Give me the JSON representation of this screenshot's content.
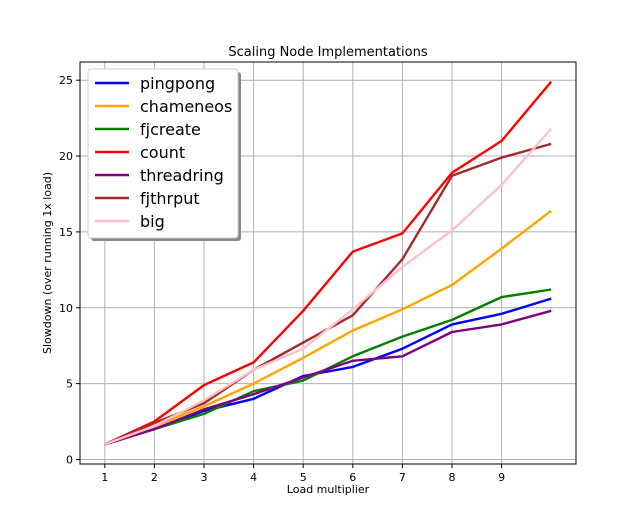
{
  "chart_data": {
    "type": "line",
    "title": "Scaling Node Implementations",
    "xlabel": "Load multiplier",
    "ylabel": "Slowdown (over running 1x load)",
    "x": [
      1,
      2,
      3,
      4,
      5,
      6,
      7,
      8,
      9,
      10
    ],
    "xticks": [
      1,
      2,
      3,
      4,
      5,
      6,
      7,
      8,
      9
    ],
    "yticks": [
      0,
      5,
      10,
      15,
      20,
      25
    ],
    "xlim": [
      0.5,
      10.5
    ],
    "ylim": [
      -0.3,
      26.2
    ],
    "grid": true,
    "legend_position": "upper-left",
    "series": [
      {
        "name": "pingpong",
        "color": "#0000ff",
        "values": [
          1,
          2.0,
          3.2,
          4.0,
          5.5,
          6.1,
          7.3,
          8.9,
          9.6,
          10.6
        ]
      },
      {
        "name": "chameneos",
        "color": "#ffa500",
        "values": [
          1,
          2.2,
          3.5,
          5.0,
          6.7,
          8.5,
          9.9,
          11.5,
          13.9,
          16.4
        ]
      },
      {
        "name": "fjcreate",
        "color": "#008000",
        "values": [
          1,
          2.0,
          3.0,
          4.5,
          5.2,
          6.8,
          8.1,
          9.2,
          10.7,
          11.2
        ]
      },
      {
        "name": "count",
        "color": "#ff0000",
        "values": [
          1,
          2.5,
          4.9,
          6.4,
          9.8,
          13.7,
          14.9,
          18.9,
          21.0,
          24.9
        ]
      },
      {
        "name": "threadring",
        "color": "#800080",
        "values": [
          1,
          2.0,
          3.3,
          4.3,
          5.4,
          6.5,
          6.8,
          8.4,
          8.9,
          9.8
        ]
      },
      {
        "name": "fjthrput",
        "color": "#a52a2a",
        "values": [
          1,
          2.4,
          3.7,
          5.9,
          7.7,
          9.5,
          13.2,
          18.7,
          19.9,
          20.8
        ]
      },
      {
        "name": "big",
        "color": "#ffc0cb",
        "values": [
          1,
          2.2,
          3.9,
          5.9,
          7.3,
          9.9,
          12.7,
          15.1,
          18.1,
          21.8
        ]
      }
    ]
  }
}
